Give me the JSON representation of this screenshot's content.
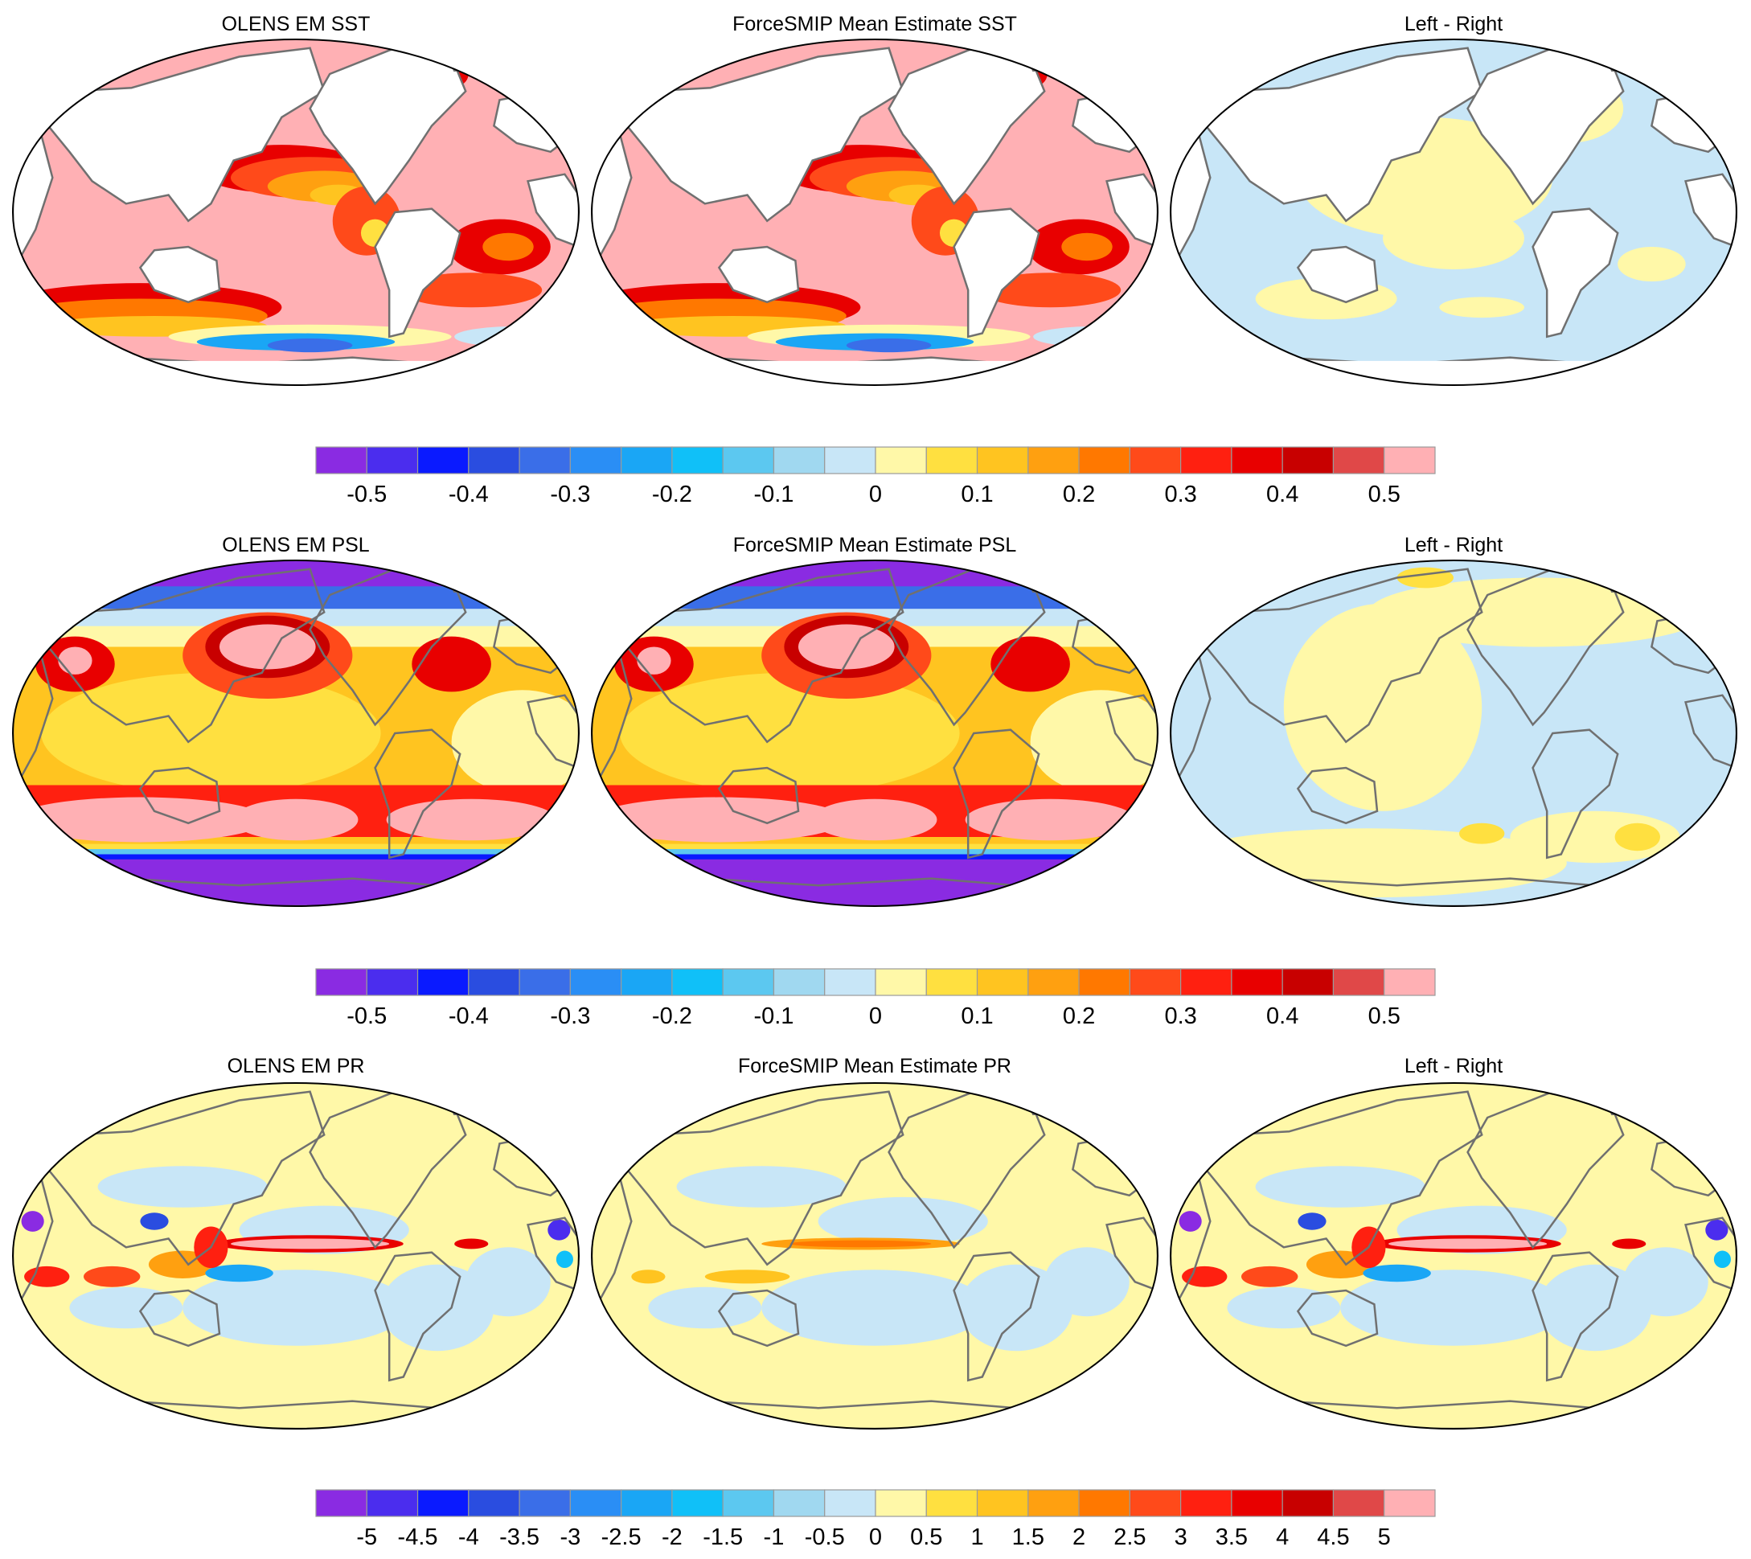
{
  "rows": [
    {
      "id": "sst",
      "titles": [
        "OLENS EM SST",
        "ForceSMIP Mean Estimate SST",
        "Left - Right"
      ],
      "colorbar_labels": [
        "-0.5",
        "-0.4",
        "-0.3",
        "-0.2",
        "-0.1",
        "0",
        "0.1",
        "0.2",
        "0.3",
        "0.4",
        "0.5"
      ]
    },
    {
      "id": "psl",
      "titles": [
        "OLENS EM PSL",
        "ForceSMIP Mean Estimate PSL",
        "Left - Right"
      ],
      "colorbar_labels": [
        "-0.5",
        "-0.4",
        "-0.3",
        "-0.2",
        "-0.1",
        "0",
        "0.1",
        "0.2",
        "0.3",
        "0.4",
        "0.5"
      ]
    },
    {
      "id": "pr",
      "titles": [
        "OLENS EM PR",
        "ForceSMIP Mean Estimate PR",
        "Left - Right"
      ],
      "colorbar_labels": [
        "-5",
        "-4.5",
        "-4",
        "-3.5",
        "-3",
        "-2.5",
        "-2",
        "-1.5",
        "-1",
        "-0.5",
        "0",
        "0.5",
        "1",
        "1.5",
        "2",
        "2.5",
        "3",
        "3.5",
        "4",
        "4.5",
        "5"
      ]
    }
  ],
  "colorbar_colors": [
    "#8a2be2",
    "#4b2dee",
    "#0a1aff",
    "#2a4de0",
    "#3a6ee8",
    "#2a8ef5",
    "#1aa6f5",
    "#10c0f8",
    "#5cc8f0",
    "#a0d8f0",
    "#c8e6f7",
    "#fff8a8",
    "#ffe040",
    "#ffc420",
    "#ffa010",
    "#ff7800",
    "#ff4a1a",
    "#ff2010",
    "#e80000",
    "#c80000",
    "#e04848",
    "#ffb0b4"
  ],
  "land_color": "#ffffff",
  "coast_color": "#707070"
}
